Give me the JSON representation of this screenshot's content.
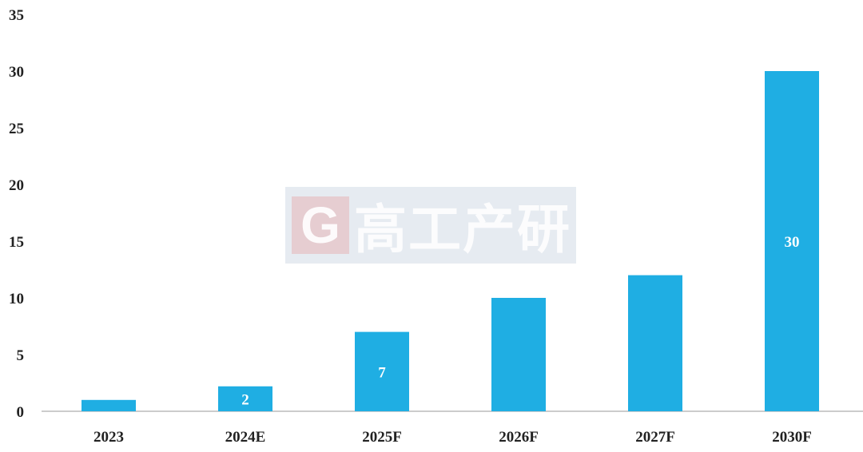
{
  "chart_data": {
    "type": "bar",
    "categories": [
      "2023",
      "2024E",
      "2025F",
      "2026F",
      "2027F",
      "2030F"
    ],
    "values": [
      1,
      2.2,
      7,
      10,
      12,
      30
    ],
    "data_labels": [
      "",
      "2",
      "7",
      "",
      "",
      "30"
    ],
    "title": "",
    "xlabel": "",
    "ylabel": "",
    "ylim": [
      0,
      35
    ],
    "yticks": [
      "0",
      "5",
      "10",
      "15",
      "20",
      "25",
      "30",
      "35"
    ],
    "grid": false,
    "bar_color": "#1FAEE3"
  },
  "watermark": {
    "logo_letter": "G",
    "text": "高工产研"
  }
}
